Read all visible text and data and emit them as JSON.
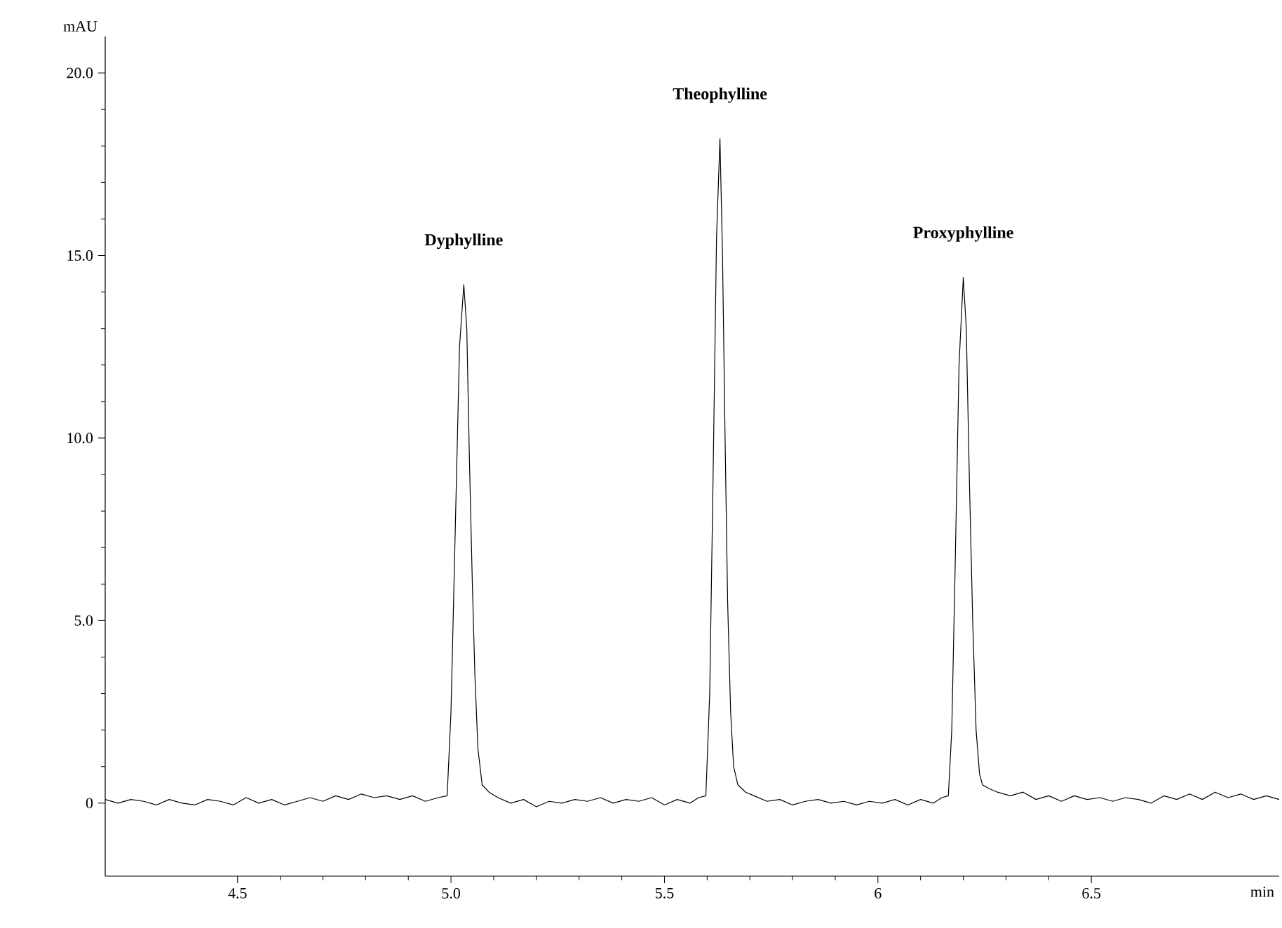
{
  "chart_data": {
    "type": "line",
    "xlabel": "min",
    "ylabel": "mAU",
    "xlim": [
      4.19,
      6.94
    ],
    "ylim": [
      -2,
      21
    ],
    "xticks": [
      4.5,
      {
        "value": 5.0,
        "label": "5.0"
      },
      5.5,
      6,
      6.5
    ],
    "yticks": [
      0,
      {
        "value": 5,
        "label": "5.0"
      },
      {
        "value": 10,
        "label": "10.0"
      },
      {
        "value": 15,
        "label": "15.0"
      },
      {
        "value": 20,
        "label": "20.0"
      }
    ],
    "annotations": [
      {
        "text": "Dyphylline",
        "x": 5.03,
        "y": 14.2
      },
      {
        "text": "Theophylline",
        "x": 5.63,
        "y": 18.2
      },
      {
        "text": "Proxyphylline",
        "x": 6.2,
        "y": 14.4
      }
    ],
    "series": [
      {
        "color": "#000000",
        "x": [
          4.19,
          4.22,
          4.25,
          4.28,
          4.31,
          4.34,
          4.37,
          4.4,
          4.43,
          4.46,
          4.49,
          4.52,
          4.55,
          4.58,
          4.61,
          4.64,
          4.67,
          4.7,
          4.73,
          4.76,
          4.79,
          4.82,
          4.85,
          4.88,
          4.91,
          4.94,
          4.97,
          4.991,
          5.0,
          5.01,
          5.02,
          5.03,
          5.037,
          5.043,
          5.05,
          5.056,
          5.063,
          5.073,
          5.089,
          5.11,
          5.14,
          5.17,
          5.2,
          5.23,
          5.26,
          5.29,
          5.32,
          5.35,
          5.38,
          5.41,
          5.44,
          5.47,
          5.5,
          5.53,
          5.56,
          5.58,
          5.597,
          5.606,
          5.614,
          5.622,
          5.63,
          5.636,
          5.642,
          5.648,
          5.655,
          5.662,
          5.672,
          5.69,
          5.71,
          5.74,
          5.77,
          5.8,
          5.83,
          5.86,
          5.89,
          5.92,
          5.95,
          5.98,
          6.01,
          6.04,
          6.07,
          6.1,
          6.13,
          6.15,
          6.165,
          6.173,
          6.181,
          6.19,
          6.2,
          6.207,
          6.214,
          6.222,
          6.23,
          6.238,
          6.245,
          6.26,
          6.28,
          6.31,
          6.34,
          6.37,
          6.4,
          6.43,
          6.46,
          6.49,
          6.52,
          6.55,
          6.58,
          6.61,
          6.64,
          6.67,
          6.7,
          6.73,
          6.76,
          6.79,
          6.82,
          6.85,
          6.88,
          6.91,
          6.94
        ],
        "values": [
          0.1,
          0.0,
          0.1,
          0.05,
          -0.05,
          0.1,
          0.0,
          -0.05,
          0.1,
          0.05,
          -0.05,
          0.15,
          0.0,
          0.1,
          -0.05,
          0.05,
          0.15,
          0.05,
          0.2,
          0.1,
          0.25,
          0.15,
          0.2,
          0.1,
          0.2,
          0.05,
          0.15,
          0.2,
          2.5,
          7.5,
          12.5,
          14.2,
          13.0,
          9.5,
          6.0,
          3.5,
          1.5,
          0.5,
          0.3,
          0.15,
          0.0,
          0.1,
          -0.1,
          0.05,
          0.0,
          0.1,
          0.05,
          0.15,
          0.0,
          0.1,
          0.05,
          0.15,
          -0.05,
          0.1,
          0.0,
          0.15,
          0.2,
          3.0,
          9.0,
          15.5,
          18.2,
          15.0,
          10.0,
          5.5,
          2.5,
          1.0,
          0.5,
          0.3,
          0.2,
          0.05,
          0.1,
          -0.05,
          0.05,
          0.1,
          0.0,
          0.05,
          -0.05,
          0.05,
          0.0,
          0.1,
          -0.05,
          0.1,
          0.0,
          0.15,
          0.2,
          2.0,
          6.5,
          12.0,
          14.4,
          13.0,
          9.0,
          5.0,
          2.0,
          0.8,
          0.5,
          0.4,
          0.3,
          0.2,
          0.3,
          0.1,
          0.2,
          0.05,
          0.2,
          0.1,
          0.15,
          0.05,
          0.15,
          0.1,
          0.0,
          0.2,
          0.1,
          0.25,
          0.1,
          0.3,
          0.15,
          0.25,
          0.1,
          0.2,
          0.1
        ]
      }
    ]
  }
}
